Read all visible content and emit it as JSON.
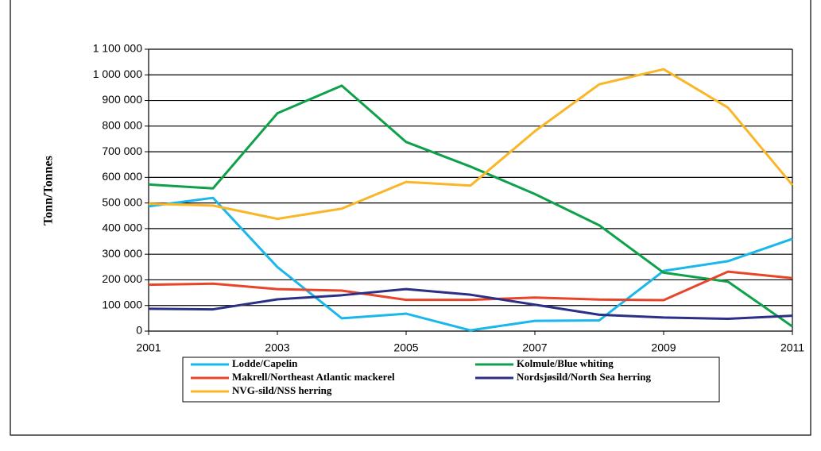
{
  "chart_data": {
    "type": "line",
    "ylabel": "Tonn/Tonnes",
    "x": [
      2001,
      2002,
      2003,
      2004,
      2005,
      2006,
      2007,
      2008,
      2009,
      2010,
      2011
    ],
    "xlim": [
      2001,
      2011
    ],
    "xticks": [
      2001,
      2003,
      2005,
      2007,
      2009,
      2011
    ],
    "ylim": [
      0,
      1100000
    ],
    "yticks": [
      0,
      {
        "value": 100000,
        "label": "100 000"
      },
      {
        "value": 200000,
        "label": "200 000"
      },
      {
        "value": 300000,
        "label": "300 000"
      },
      {
        "value": 400000,
        "label": "400 000"
      },
      {
        "value": 500000,
        "label": "500 000"
      },
      {
        "value": 600000,
        "label": "600 000"
      },
      {
        "value": 700000,
        "label": "700 000"
      },
      {
        "value": 800000,
        "label": "800 000"
      },
      {
        "value": 900000,
        "label": "900 000"
      },
      {
        "value": 1000000,
        "label": "1 000 000"
      },
      {
        "value": 1100000,
        "label": "1 100 000"
      }
    ],
    "grid": true,
    "legend": "bottom",
    "series": [
      {
        "name": "Lodde/Capelin",
        "color": "#1ab7ea",
        "values": [
          487000,
          520000,
          250000,
          50000,
          68000,
          3000,
          40000,
          42000,
          235000,
          273000,
          360000
        ]
      },
      {
        "name": "Kolmule/Blue whiting",
        "color": "#0fa14a",
        "values": [
          572000,
          557000,
          850000,
          958000,
          738000,
          642000,
          535000,
          413000,
          228000,
          193000,
          18000
        ]
      },
      {
        "name": "Makrell/Northeast Atlantic mackerel",
        "color": "#e8442a",
        "values": [
          181000,
          185000,
          164000,
          158000,
          122000,
          122000,
          131000,
          123000,
          121000,
          232000,
          207000
        ]
      },
      {
        "name": "Nordsjøsild/North Sea herring",
        "color": "#2b2f86",
        "values": [
          87000,
          85000,
          124000,
          140000,
          164000,
          142000,
          103000,
          64000,
          53000,
          48000,
          60000
        ]
      },
      {
        "name": "NVG-sild/NSS herring",
        "color": "#f9b627",
        "values": [
          497000,
          490000,
          438000,
          478000,
          582000,
          568000,
          780000,
          963000,
          1022000,
          872000,
          570000
        ]
      }
    ]
  }
}
